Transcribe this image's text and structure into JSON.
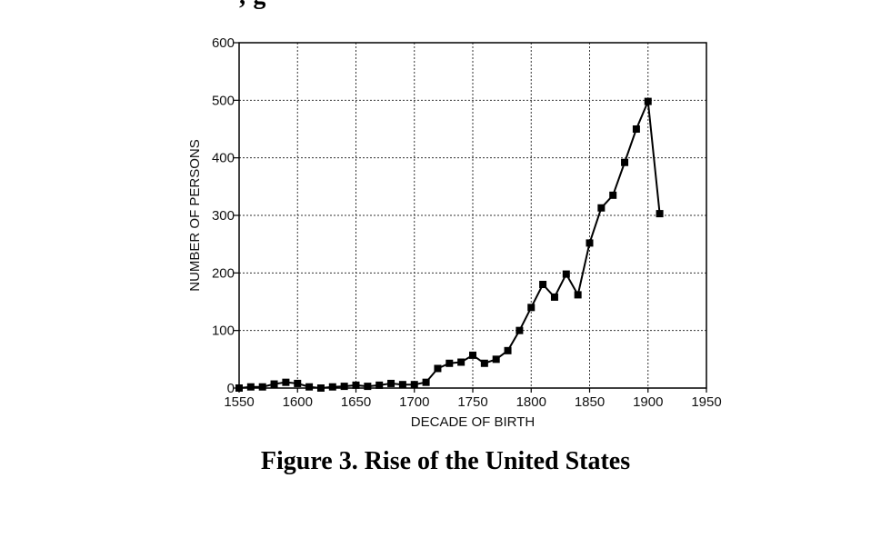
{
  "top_fragment": "; g",
  "caption": "Figure 3. Rise of the United States",
  "chart_data": {
    "type": "line",
    "title": "",
    "xlabel": "DECADE OF BIRTH",
    "ylabel": "NUMBER OF PERSONS",
    "xlim": [
      1550,
      1950
    ],
    "ylim": [
      0,
      600
    ],
    "xticks": [
      1550,
      1600,
      1650,
      1700,
      1750,
      1800,
      1850,
      1900,
      1950
    ],
    "yticks": [
      0,
      100,
      200,
      300,
      400,
      500,
      600
    ],
    "grid": true,
    "series": [
      {
        "name": "United States",
        "marker": "square",
        "x": [
          1550,
          1560,
          1570,
          1580,
          1590,
          1600,
          1610,
          1620,
          1630,
          1640,
          1650,
          1660,
          1670,
          1680,
          1690,
          1700,
          1710,
          1720,
          1730,
          1740,
          1750,
          1760,
          1770,
          1780,
          1790,
          1800,
          1810,
          1820,
          1830,
          1840,
          1850,
          1860,
          1870,
          1880,
          1890,
          1900,
          1910
        ],
        "y": [
          0,
          2,
          2,
          7,
          10,
          8,
          2,
          0,
          2,
          3,
          5,
          3,
          5,
          8,
          6,
          6,
          10,
          34,
          43,
          45,
          57,
          43,
          50,
          65,
          100,
          140,
          180,
          158,
          198,
          162,
          252,
          313,
          335,
          392,
          450,
          498,
          303
        ]
      }
    ]
  }
}
